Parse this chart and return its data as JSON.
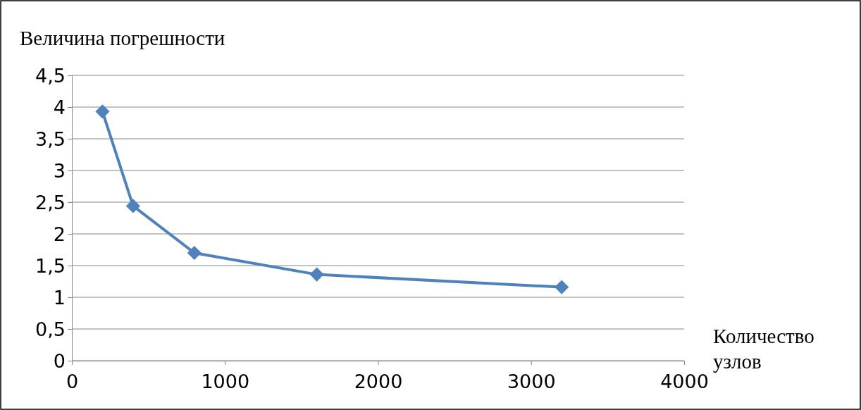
{
  "chart_data": {
    "type": "line",
    "ylabel": "Величина погрешности",
    "xlabel": "Количество узлов",
    "x": [
      200,
      400,
      800,
      1600,
      3200
    ],
    "series": [
      {
        "color": "#4f81bd",
        "values": [
          3.93,
          2.44,
          1.7,
          1.36,
          1.16
        ]
      }
    ],
    "xlim": [
      0,
      4000
    ],
    "xticks": [
      0,
      1000,
      2000,
      3000,
      4000
    ],
    "ylim": [
      0,
      4.5
    ],
    "yticks": [
      0,
      {
        "value": 0.5,
        "label": "0,5"
      },
      1,
      {
        "value": 1.5,
        "label": "1,5"
      },
      2,
      {
        "value": 2.5,
        "label": "2,5"
      },
      3,
      {
        "value": 3.5,
        "label": "3,5"
      },
      4,
      {
        "value": 4.5,
        "label": "4,5"
      }
    ],
    "grid": "y",
    "marker": "diamond",
    "line_style": "solid"
  }
}
